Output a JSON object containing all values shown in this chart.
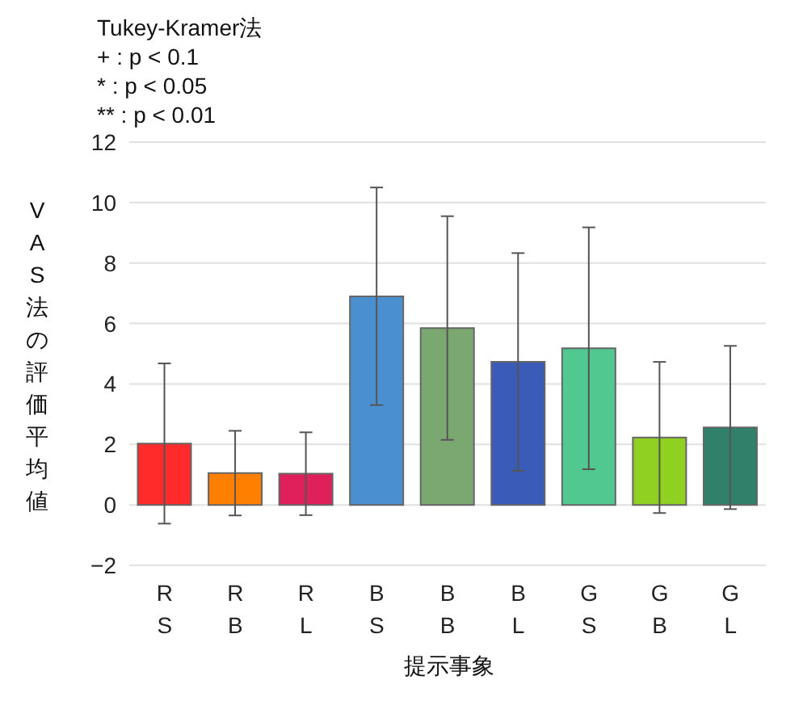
{
  "chart_data": {
    "type": "bar",
    "title": "Tukey-Kramer法",
    "annotations": [
      "+ : p < 0.1",
      "* : p < 0.05",
      "** : p < 0.01"
    ],
    "xlabel": "提示事象",
    "ylabel": "VAS法の評価平均値",
    "categories": [
      "R\nS",
      "R\nB",
      "R\nL",
      "B\nS",
      "B\nB",
      "B\nL",
      "G\nS",
      "G\nB",
      "G\nL"
    ],
    "values": [
      2.03,
      1.05,
      1.03,
      6.9,
      5.85,
      4.73,
      5.18,
      2.23,
      2.56
    ],
    "errors": [
      2.65,
      1.4,
      1.37,
      3.6,
      3.7,
      3.6,
      4.0,
      2.5,
      2.7
    ],
    "colors": [
      "#ff2a2a",
      "#ff8000",
      "#e0205a",
      "#4a90d0",
      "#7aa870",
      "#3a5cb8",
      "#50c890",
      "#90d020",
      "#30806a"
    ],
    "ylim": [
      -2,
      12
    ],
    "yticks": [
      -2,
      0,
      2,
      4,
      6,
      8,
      10,
      12
    ],
    "grid": "y",
    "legend": false
  }
}
